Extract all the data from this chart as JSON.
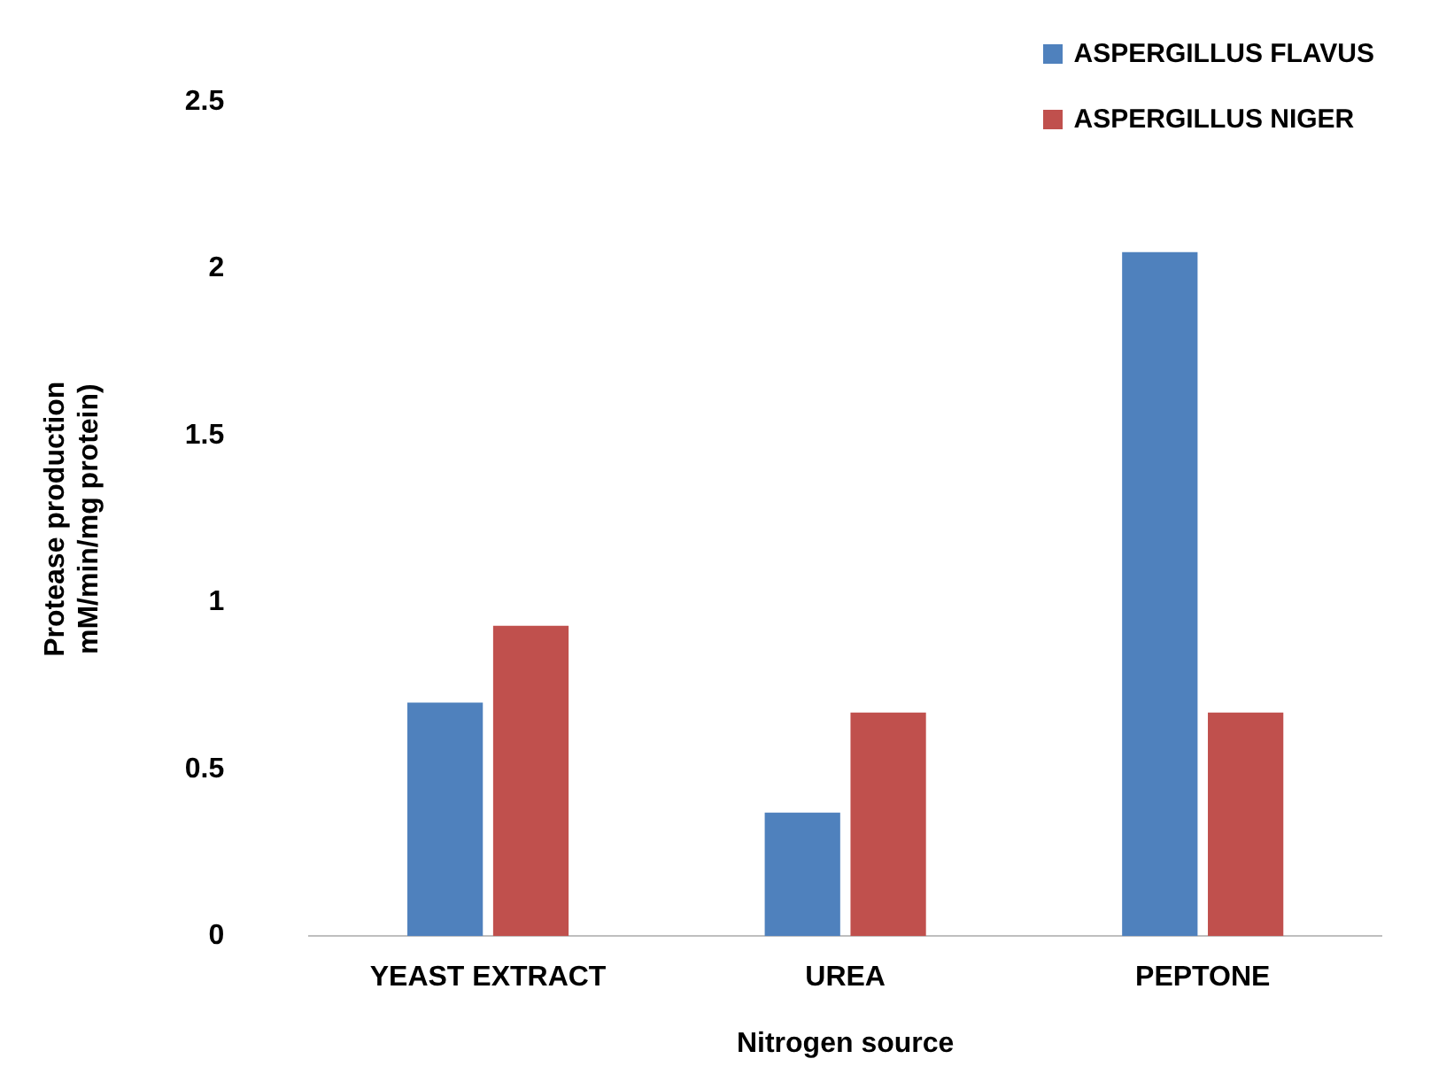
{
  "chart_data": {
    "type": "bar",
    "xlabel": "Nitrogen source",
    "ylabel": "Protease production\nmM/min/mg protein)",
    "categories": [
      "YEAST EXTRACT",
      "UREA",
      "PEPTONE"
    ],
    "series": [
      {
        "name": "ASPERGILLUS FLAVUS",
        "color": "#4f81bd",
        "values": [
          0.7,
          0.37,
          2.05
        ]
      },
      {
        "name": "ASPERGILLUS NIGER",
        "color": "#c0504d",
        "values": [
          0.93,
          0.67,
          0.67
        ]
      }
    ],
    "ylim": [
      0,
      2.5
    ],
    "yticks": [
      0,
      0.5,
      1,
      1.5,
      2,
      2.5
    ],
    "grid": false,
    "legend": "top right"
  }
}
